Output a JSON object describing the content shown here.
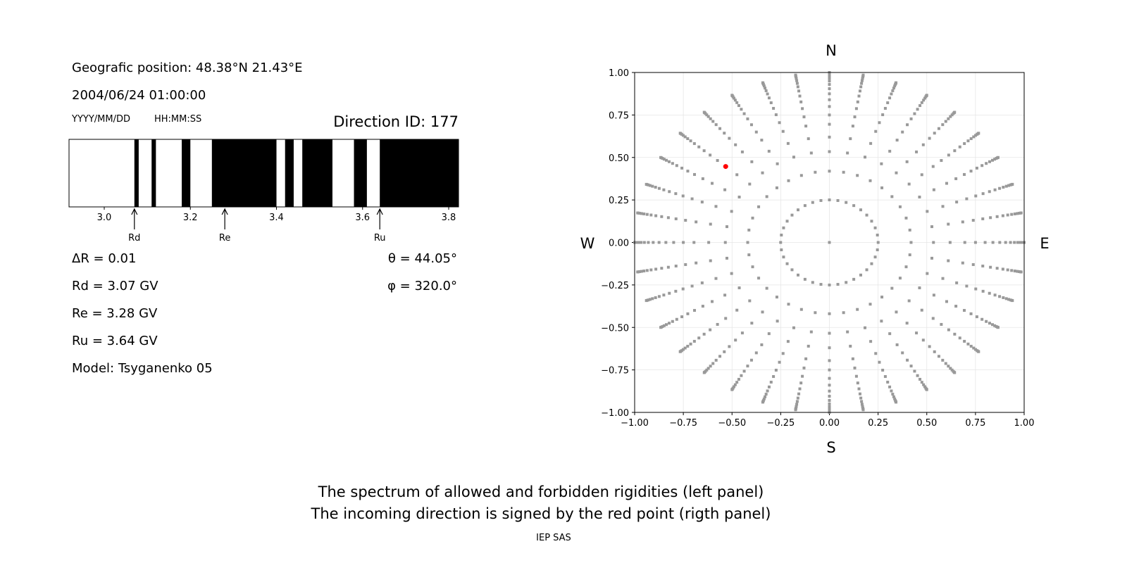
{
  "info": {
    "geo_position": "Geografic position: 48.38°N 21.43°E",
    "datetime": "2004/06/24 01:00:00",
    "date_format": "YYYY/MM/DD",
    "time_format": "HH:MM:SS",
    "direction_id": "Direction ID: 177",
    "delta_r": "ΔR = 0.01",
    "rd": "Rd = 3.07 GV",
    "re": "Re = 3.28 GV",
    "ru": "Ru = 3.64 GV",
    "model": "Model: Tsyganenko 05",
    "theta": "θ = 44.05°",
    "phi": "φ = 320.0°"
  },
  "caption": {
    "line1": "The spectrum of allowed and forbidden rigidities (left panel)",
    "line2": "The incoming direction is signed by the red point (rigth panel)",
    "credit": "IEP SAS"
  },
  "chart_data": [
    {
      "type": "bar",
      "subtype": "rigidity-spectrum",
      "xlim": [
        2.92,
        3.82
      ],
      "xticks": [
        "3.0",
        "3.2",
        "3.4",
        "3.6",
        "3.8"
      ],
      "tick_values": [
        3.0,
        3.2,
        3.4,
        3.6,
        3.8
      ],
      "forbidden_intervals": [
        [
          3.07,
          3.08
        ],
        [
          3.11,
          3.12
        ],
        [
          3.18,
          3.2
        ],
        [
          3.25,
          3.4
        ],
        [
          3.42,
          3.44
        ],
        [
          3.46,
          3.53
        ],
        [
          3.58,
          3.61
        ],
        [
          3.64,
          3.823
        ]
      ],
      "allowed_color": "#ffffff",
      "forbidden_color": "#000000",
      "markers": [
        {
          "label": "Rd",
          "value": 3.07
        },
        {
          "label": "Re",
          "value": 3.28
        },
        {
          "label": "Ru",
          "value": 3.64
        }
      ]
    },
    {
      "type": "scatter",
      "subtype": "direction-map",
      "xlim": [
        -1,
        1
      ],
      "ylim": [
        -1,
        1
      ],
      "xticks": [
        "−1.00",
        "−0.75",
        "−0.50",
        "−0.25",
        "0.00",
        "0.25",
        "0.50",
        "0.75",
        "1.00"
      ],
      "yticks": [
        "−1.00",
        "−0.75",
        "−0.50",
        "−0.25",
        "0.00",
        "0.25",
        "0.50",
        "0.75",
        "1.00"
      ],
      "tick_values": [
        -1,
        -0.75,
        -0.5,
        -0.25,
        0,
        0.25,
        0.5,
        0.75,
        1
      ],
      "grid": true,
      "compass": {
        "north": "N",
        "south": "S",
        "west": "W",
        "east": "E"
      },
      "theta_rings_deg": [
        14.5,
        24.8,
        32.3,
        38.3,
        44.05,
        48.6,
        53.1,
        57.1,
        61.0,
        64.8,
        68.4,
        71.8,
        75.2,
        78.5,
        81.9,
        85.6,
        90.0
      ],
      "phi_step_deg": 10,
      "point_color": "#999999",
      "highlight": {
        "theta": 44.05,
        "phi": 320.0,
        "color": "#ff0000"
      }
    }
  ]
}
